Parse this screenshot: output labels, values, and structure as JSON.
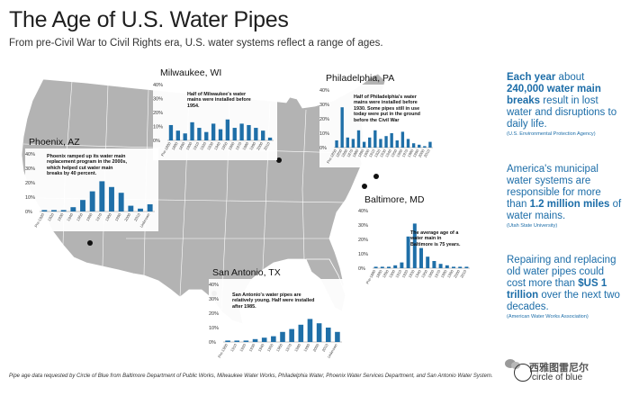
{
  "header": {
    "title": "The Age of U.S. Water Pipes",
    "subtitle": "From pre-Civil War to Civil Rights era, U.S. water systems reflect a range of ages."
  },
  "colors": {
    "bar": "#1f6fa8",
    "map_fill": "#b3b3b3",
    "map_stroke": "#ffffff",
    "stat_text": "#1c6da8"
  },
  "stats": [
    {
      "pre": "",
      "bold": "Each year",
      "mid": " about ",
      "bold2": "240,000 water main breaks",
      "post": " result in lost water and disruptions to daily life.",
      "source": "(U.S. Environmental Protection Agency)"
    },
    {
      "pre": "America's municipal water systems are responsible for more than ",
      "bold": "1.2 million miles",
      "mid": " of water mains.",
      "bold2": "",
      "post": "",
      "source": "(Utah State University)"
    },
    {
      "pre": "Repairing and replacing old water pipes could cost more than ",
      "bold": "$US 1 trillion",
      "mid": " over the next two decades.",
      "bold2": "",
      "post": "",
      "source": "(American Water Works Association)"
    }
  ],
  "footnote": "Pipe age data requested by Circle of Blue from Baltimore Department of Public Works, Milwaukee Water Works, Philadelphia Water, Phoenix Water Services Department, and San Antonio Water System.",
  "branding": {
    "logo": "circle of blue",
    "watermark": "西雅图雷尼尔"
  },
  "chart_data": [
    {
      "type": "bar",
      "city": "Milwaukee, WI",
      "annotation": "Half of Milwaukee's water mains were installed before 1954.",
      "ylim": [
        0,
        40
      ],
      "yticks": [
        "40%",
        "30%",
        "20%",
        "10%",
        "0%"
      ],
      "categories": [
        "Pre-1880",
        "1880",
        "1890",
        "1900",
        "1910",
        "1920",
        "1930",
        "1940",
        "1950",
        "1960",
        "1970",
        "1980",
        "1990",
        "2000",
        "2010"
      ],
      "values": [
        11,
        7,
        5,
        13,
        9,
        6,
        12,
        8,
        15,
        9,
        12,
        11,
        9,
        7,
        2
      ]
    },
    {
      "type": "bar",
      "city": "Philadelphia, PA",
      "annotation": "Half of Philadelphia's water mains were installed before 1930. Some pipes still in use today were put in the ground before the Civil War",
      "ylim": [
        0,
        40
      ],
      "yticks": [
        "40%",
        "30%",
        "20%",
        "10%",
        "0%"
      ],
      "categories": [
        "Pre-1850",
        "1850",
        "1860",
        "1870",
        "1880",
        "1890",
        "1900",
        "1910",
        "1920",
        "1930",
        "1940",
        "1950",
        "1960",
        "1970",
        "1980",
        "1990",
        "2000",
        "2010"
      ],
      "values": [
        5,
        28,
        7,
        6,
        12,
        4,
        7,
        12,
        6,
        8,
        10,
        5,
        11,
        6,
        3,
        2,
        1,
        4
      ]
    },
    {
      "type": "bar",
      "city": "Phoenix, AZ",
      "annotation": "Phoenix ramped up its water main replacement program in the 2000s, which helped cut water main breaks by 40 percent.",
      "ylim": [
        0,
        40
      ],
      "yticks": [
        "40%",
        "30%",
        "20%",
        "10%",
        "0%"
      ],
      "categories": [
        "Pre-1920",
        "1920",
        "1930",
        "1940",
        "1950",
        "1960",
        "1970",
        "1980",
        "1990",
        "2000",
        "2010",
        "Unknown"
      ],
      "values": [
        1,
        1,
        1,
        3,
        8,
        14,
        21,
        17,
        13,
        4,
        2,
        5
      ]
    },
    {
      "type": "bar",
      "city": "Baltimore, MD",
      "annotation": "The average age of a water main in Baltimore is 75 years.",
      "ylim": [
        0,
        40
      ],
      "yticks": [
        "40%",
        "30%",
        "20%",
        "10%",
        "0%"
      ],
      "categories": [
        "Pre-1880",
        "1880",
        "1890",
        "1900",
        "1910",
        "1920",
        "1930",
        "1940",
        "1950",
        "1960",
        "1970",
        "1980",
        "1990",
        "2000",
        "2010"
      ],
      "values": [
        1,
        1,
        1,
        2,
        4,
        22,
        31,
        14,
        8,
        5,
        3,
        2,
        1,
        1,
        1
      ]
    },
    {
      "type": "bar",
      "city": "San Antonio, TX",
      "annotation": "San Antonio's water pipes are relatively young. Half were installed after 1985.",
      "ylim": [
        0,
        40
      ],
      "yticks": [
        "40%",
        "30%",
        "20%",
        "10%",
        "0%"
      ],
      "categories": [
        "Pre-1900",
        "1910",
        "1920",
        "1930",
        "1940",
        "1950",
        "1960",
        "1970",
        "1980",
        "1990",
        "2000",
        "2010",
        "Unknown"
      ],
      "values": [
        1,
        1,
        1,
        2,
        3,
        4,
        7,
        9,
        12,
        16,
        13,
        10,
        7
      ]
    }
  ]
}
